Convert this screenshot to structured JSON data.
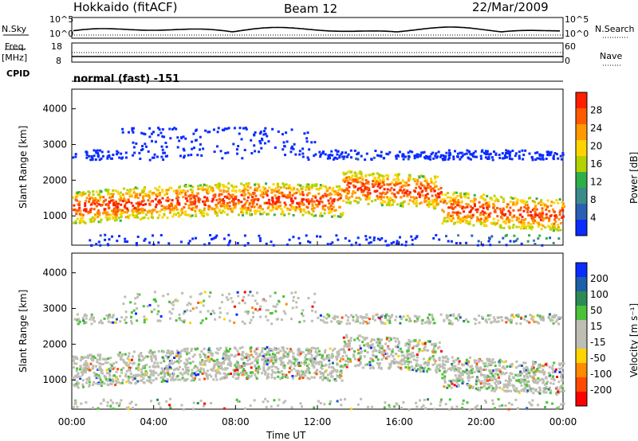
{
  "header": {
    "site": "Hokkaido (fitACF)",
    "beam": "Beam 12",
    "date": "22/Mar/2009"
  },
  "noise_panel": {
    "left_label": "N.Sky",
    "right_label": "N.Search",
    "left_ticks": [
      "10^5",
      "10^0"
    ],
    "right_ticks": [
      "10^5",
      "10^0"
    ]
  },
  "freq_panel": {
    "left_label_line1": "Freq.",
    "left_label_line2": "[MHz]",
    "left_ticks": [
      "18",
      "8"
    ],
    "right_label": "Nave",
    "right_ticks": [
      "60",
      "0"
    ]
  },
  "cpid": {
    "label": "CPID",
    "value": "normal (fast) -151"
  },
  "colors": {
    "power_scale": [
      "#0a2cff",
      "#2a5fb4",
      "#3c8a8a",
      "#2fae4a",
      "#b4d200",
      "#ffd400",
      "#ff9a00",
      "#ff5a00",
      "#ff1e00"
    ],
    "velocity_scale": [
      "#0a2cff",
      "#1d5fa8",
      "#2d8a55",
      "#4cc13a",
      "#bebeb4",
      "#bebeb4",
      "#ffd400",
      "#ff8a00",
      "#ff4a00",
      "#ff0000"
    ],
    "axis": "#000000"
  },
  "chart_data": [
    {
      "type": "heatmap",
      "title": "",
      "xlabel": "",
      "ylabel": "Slant Range [km]",
      "x_ticks": [
        "00:00",
        "04:00",
        "08:00",
        "12:00",
        "16:00",
        "20:00",
        "00:00"
      ],
      "y_ticks": [
        "1000",
        "2000",
        "3000",
        "4000"
      ],
      "ylim": [
        180,
        4550
      ],
      "colorbar_label": "Power [dB]",
      "colorbar_ticks": [
        "4",
        "8",
        "12",
        "16",
        "20",
        "24",
        "28"
      ]
    },
    {
      "type": "heatmap",
      "title": "",
      "xlabel": "Time UT",
      "ylabel": "Slant Range [km]",
      "x_ticks": [
        "00:00",
        "04:00",
        "08:00",
        "12:00",
        "16:00",
        "20:00",
        "00:00"
      ],
      "y_ticks": [
        "1000",
        "2000",
        "3000",
        "4000"
      ],
      "ylim": [
        180,
        4550
      ],
      "colorbar_label": "Velocity [m s⁻¹]",
      "colorbar_ticks": [
        "200",
        "100",
        "50",
        "15",
        "-15",
        "-50",
        "-100",
        "-200"
      ]
    }
  ]
}
